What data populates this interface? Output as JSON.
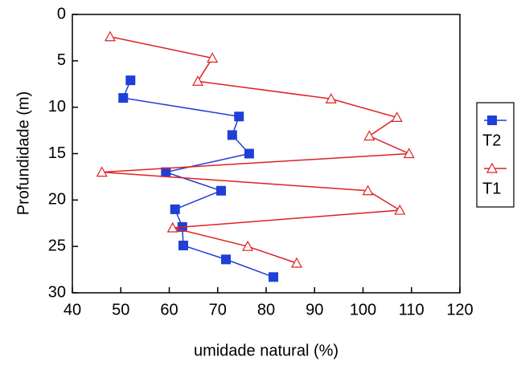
{
  "chart_data": {
    "type": "line",
    "x_label": "umidade natural (%)",
    "y_label": "Profundidade (m)",
    "xlim": [
      40,
      120
    ],
    "xticks": [
      40,
      50,
      60,
      70,
      80,
      90,
      100,
      110,
      120
    ],
    "ylim": [
      30,
      0
    ],
    "yticks": [
      0,
      5,
      10,
      15,
      20,
      25,
      30
    ],
    "series": [
      {
        "name": "T2",
        "color": "#1f3fd6",
        "marker": "square",
        "x": [
          52,
          50.5,
          74.4,
          73,
          76.5,
          59.3,
          70.7,
          61.2,
          62.7,
          62.9,
          71.7,
          81.5
        ],
        "values": [
          7.1,
          9,
          11,
          13,
          15,
          17,
          19,
          21,
          22.9,
          24.9,
          26.4,
          28.3
        ]
      },
      {
        "name": "T1",
        "color": "#e02020",
        "marker": "triangle",
        "x": [
          47.8,
          68.9,
          65.9,
          93.4,
          107,
          101.3,
          109.5,
          46.1,
          101,
          107.6,
          60.7,
          76.2,
          86.3
        ],
        "values": [
          2.4,
          4.7,
          7.2,
          9.1,
          11.1,
          13.1,
          15,
          17,
          19,
          21.1,
          23,
          25,
          26.8
        ]
      }
    ]
  }
}
